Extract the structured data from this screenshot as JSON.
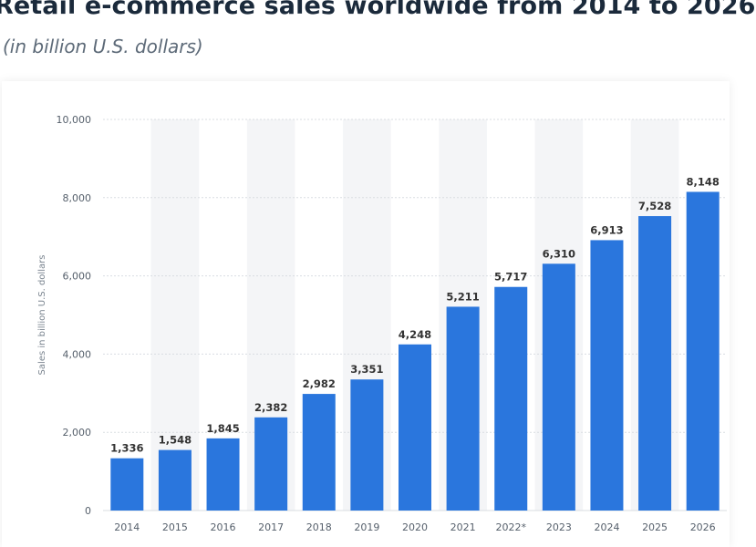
{
  "chart_data": {
    "type": "bar",
    "title": "Retail e-commerce sales worldwide from 2014 to 2026",
    "subtitle": "(in billion U.S. dollars)",
    "xlabel": "",
    "ylabel": "Sales in billion U.S. dollars",
    "categories": [
      "2014",
      "2015",
      "2016",
      "2017",
      "2018",
      "2019",
      "2020",
      "2021",
      "2022*",
      "2023",
      "2024",
      "2025",
      "2026"
    ],
    "values": [
      1336,
      1548,
      1845,
      2382,
      2982,
      3351,
      4248,
      5211,
      5717,
      6310,
      6913,
      7528,
      8148
    ],
    "value_labels": [
      "1,336",
      "1,548",
      "1,845",
      "2,382",
      "2,982",
      "3,351",
      "4,248",
      "5,211",
      "5,717",
      "6,310",
      "6,913",
      "7,528",
      "8,148"
    ],
    "ylim": [
      0,
      10000
    ],
    "yticks": [
      0,
      2000,
      4000,
      6000,
      8000,
      10000
    ],
    "ytick_labels": [
      "0",
      "2,000",
      "4,000",
      "6,000",
      "8,000",
      "10,000"
    ],
    "grid": true,
    "alternating_column_shading": true,
    "colors": {
      "bar": "#2a76dd",
      "grid": "#d9dde2",
      "shade": "#f4f5f7"
    }
  }
}
